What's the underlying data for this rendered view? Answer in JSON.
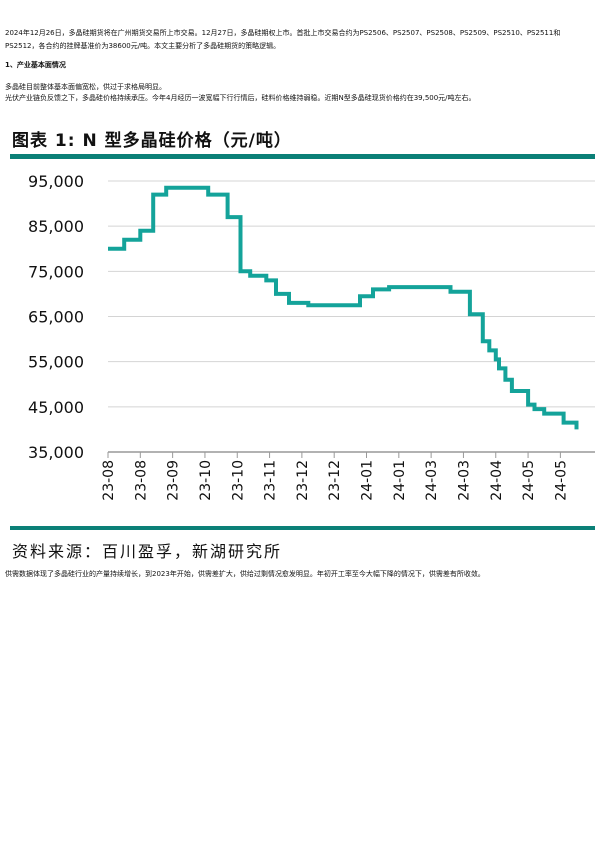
{
  "intro": "2024年12月26日，多晶硅期货将在广州期货交易所上市交易。12月27日，多晶硅期权上市。首批上市交易合约为PS2506、PS2507、PS2508、PS2509、PS2510、PS2511和PS2512，各合约的挂牌基准价为38600元/吨。本文主要分析了多晶硅期货的策略逻辑。",
  "section_heading": "1、产业基本面情况",
  "para1": "多晶硅目前整体基本面偏宽松，供过于求格局明显。",
  "para2": "光伏产业链负反馈之下，多晶硅价格持续承压。今年4月经历一波宽幅下行行情后，硅料价格维持弱稳。近期N型多晶硅现货价格约在39,500元/吨左右。",
  "figure_title": "图表 1: N 型多晶硅价格（元/吨）",
  "source": "资料来源：百川盈孚，新湖研究所",
  "para3": "供需数据体现了多晶硅行业的产量持续增长，到2023年开始，供需差扩大，供给过剩情况愈发明显。年初开工率至今大幅下降的情况下，供需差有所收敛。",
  "colors": {
    "accent": "#0b8077",
    "line": "#14a39a"
  },
  "chart_data": {
    "type": "line",
    "title": "",
    "xlabel": "",
    "ylabel": "",
    "ylim": [
      35000,
      95000
    ],
    "yticks": [
      "95,000",
      "85,000",
      "75,000",
      "65,000",
      "55,000",
      "45,000",
      "35,000"
    ],
    "xticks": [
      "23-08",
      "23-08",
      "23-09",
      "23-10",
      "23-10",
      "23-11",
      "23-12",
      "23-12",
      "24-01",
      "24-01",
      "24-03",
      "24-03",
      "24-04",
      "24-05",
      "24-05"
    ],
    "grid": true,
    "series": [
      {
        "values": [
          [
            0,
            80000
          ],
          [
            0.5,
            80000
          ],
          [
            0.5,
            82000
          ],
          [
            1.0,
            82000
          ],
          [
            1.0,
            84000
          ],
          [
            1.4,
            84000
          ],
          [
            1.4,
            92000
          ],
          [
            1.8,
            92000
          ],
          [
            1.8,
            93500
          ],
          [
            3.1,
            93500
          ],
          [
            3.1,
            92000
          ],
          [
            3.7,
            92000
          ],
          [
            3.7,
            87000
          ],
          [
            4.1,
            87000
          ],
          [
            4.1,
            75000
          ],
          [
            4.4,
            75000
          ],
          [
            4.4,
            74000
          ],
          [
            4.9,
            74000
          ],
          [
            4.9,
            73000
          ],
          [
            5.2,
            73000
          ],
          [
            5.2,
            70000
          ],
          [
            5.6,
            70000
          ],
          [
            5.6,
            68000
          ],
          [
            6.2,
            68000
          ],
          [
            6.2,
            67500
          ],
          [
            7.8,
            67500
          ],
          [
            7.8,
            69500
          ],
          [
            8.2,
            69500
          ],
          [
            8.2,
            71000
          ],
          [
            8.7,
            71000
          ],
          [
            8.7,
            71500
          ],
          [
            10.6,
            71500
          ],
          [
            10.6,
            70500
          ],
          [
            11.2,
            70500
          ],
          [
            11.2,
            65500
          ],
          [
            11.6,
            65500
          ],
          [
            11.6,
            59500
          ],
          [
            11.8,
            59500
          ],
          [
            11.8,
            57500
          ],
          [
            12.0,
            57500
          ],
          [
            12.0,
            55500
          ],
          [
            12.1,
            55500
          ],
          [
            12.1,
            53500
          ],
          [
            12.3,
            53500
          ],
          [
            12.3,
            51000
          ],
          [
            12.5,
            51000
          ],
          [
            12.5,
            48500
          ],
          [
            13.0,
            48500
          ],
          [
            13.0,
            45500
          ],
          [
            13.2,
            45500
          ],
          [
            13.2,
            44500
          ],
          [
            13.5,
            44500
          ],
          [
            13.5,
            43500
          ],
          [
            14.1,
            43500
          ],
          [
            14.1,
            41500
          ],
          [
            14.5,
            41500
          ],
          [
            14.5,
            40000
          ]
        ]
      }
    ]
  }
}
